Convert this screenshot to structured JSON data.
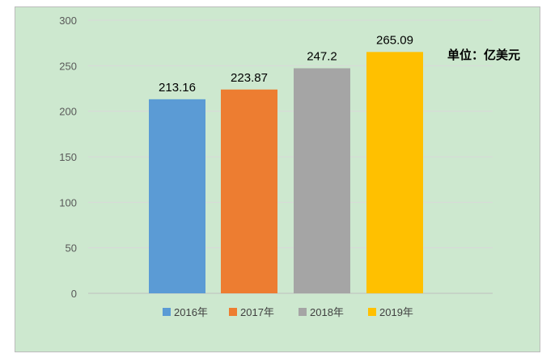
{
  "chart_data": {
    "type": "bar",
    "categories": [
      "2016年",
      "2017年",
      "2018年",
      "2019年"
    ],
    "values": [
      213.16,
      223.87,
      247.2,
      265.09
    ],
    "data_labels": [
      "213.16",
      "223.87",
      "247.2",
      "265.09"
    ],
    "colors": [
      "#5b9bd5",
      "#ed7d31",
      "#a5a5a5",
      "#ffc000"
    ],
    "ylim": [
      0,
      300
    ],
    "yticks": [
      0,
      50,
      100,
      150,
      200,
      250,
      300
    ],
    "grid": true,
    "legend": "bottom",
    "unit_annotation": "单位：亿美元"
  }
}
